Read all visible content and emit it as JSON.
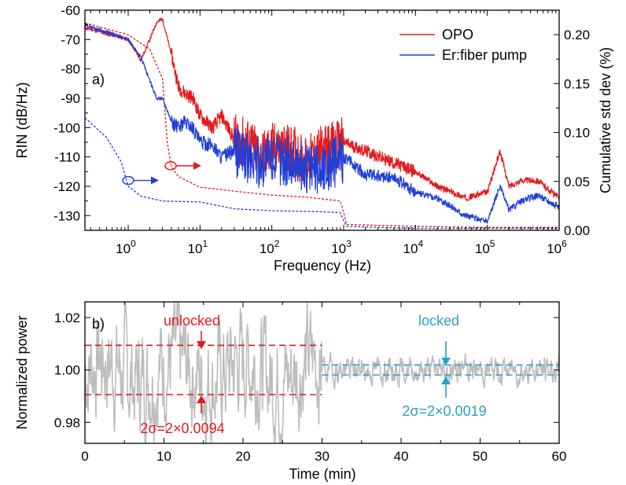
{
  "chart_data": [
    {
      "type": "line",
      "panel_label": "a)",
      "xlabel": "Frequency (Hz)",
      "ylabel": "RIN (dB/Hz)",
      "y2label": "Cumulative std dev (%)",
      "xscale": "log",
      "xlim": [
        0.25,
        1000000
      ],
      "ylim": [
        -135,
        -60
      ],
      "y2lim": [
        0,
        0.225
      ],
      "xticks": [
        1,
        10,
        100,
        1000,
        10000,
        100000,
        1000000
      ],
      "xtick_labels": [
        {
          "base": "10",
          "exp": "0"
        },
        {
          "base": "10",
          "exp": "1"
        },
        {
          "base": "10",
          "exp": "2"
        },
        {
          "base": "10",
          "exp": "3"
        },
        {
          "base": "10",
          "exp": "4"
        },
        {
          "base": "10",
          "exp": "5"
        },
        {
          "base": "10",
          "exp": "6"
        }
      ],
      "yticks": [
        -130,
        -120,
        -110,
        -100,
        -90,
        -80,
        -70,
        -60
      ],
      "ytick_labels": [
        "-130",
        "-120",
        "-110",
        "-100",
        "-90",
        "-80",
        "-70",
        "-60"
      ],
      "y2ticks": [
        0,
        0.05,
        0.1,
        0.15,
        0.2
      ],
      "y2tick_labels": [
        "0.00",
        "0.05",
        "0.10",
        "0.15",
        "0.20"
      ],
      "legend_position": "top-right",
      "series": [
        {
          "name": "OPO",
          "color": "#e31a1c",
          "axis": "left",
          "style": "solid",
          "x": [
            0.25,
            1,
            1.5,
            2,
            2.5,
            3,
            4,
            5,
            6,
            8,
            10,
            15,
            20,
            30,
            50,
            70,
            100,
            200,
            300,
            500,
            1000,
            2000,
            5000,
            10000,
            20000,
            50000,
            100000,
            150000,
            200000,
            300000,
            500000,
            1000000
          ],
          "y": [
            -66,
            -70,
            -77,
            -70,
            -64,
            -63,
            -75,
            -86,
            -88,
            -90,
            -96,
            -100,
            -96,
            -104,
            -106,
            -110,
            -107,
            -108,
            -112,
            -108,
            -105,
            -108,
            -112,
            -115,
            -120,
            -124,
            -122,
            -108,
            -120,
            -118,
            -118,
            -124
          ]
        },
        {
          "name": "Er:fiber pump",
          "color": "#1f3fd6",
          "axis": "left",
          "style": "solid",
          "x": [
            0.25,
            1,
            1.5,
            2,
            2.5,
            3,
            4,
            5,
            6,
            8,
            10,
            15,
            20,
            30,
            50,
            70,
            100,
            200,
            300,
            500,
            1000,
            2000,
            5000,
            10000,
            20000,
            50000,
            100000,
            150000,
            200000,
            300000,
            500000,
            1000000
          ],
          "y": [
            -65,
            -70,
            -76,
            -84,
            -90,
            -90,
            -98,
            -100,
            -98,
            -100,
            -105,
            -106,
            -110,
            -108,
            -111,
            -112,
            -110,
            -112,
            -114,
            -114,
            -110,
            -116,
            -117,
            -122,
            -124,
            -130,
            -132,
            -120,
            -128,
            -125,
            -123,
            -127
          ]
        },
        {
          "name": "OPO cumulative std dev",
          "color": "#e31a1c",
          "axis": "right",
          "style": "dashed",
          "x": [
            0.25,
            1,
            2,
            3,
            3.5,
            4,
            5,
            10,
            30,
            100,
            300,
            900,
            1000,
            1100,
            10000,
            100000,
            1000000
          ],
          "y2": [
            0.212,
            0.2,
            0.185,
            0.155,
            0.09,
            0.065,
            0.055,
            0.044,
            0.04,
            0.036,
            0.034,
            0.03,
            0.018,
            0.006,
            0.004,
            0.003,
            0.003
          ]
        },
        {
          "name": "Er:fiber pump cumulative std dev",
          "color": "#1f3fd6",
          "axis": "right",
          "style": "dashed",
          "x": [
            0.25,
            0.5,
            0.8,
            1,
            1.5,
            3,
            10,
            30,
            100,
            500,
            900,
            1000,
            1100,
            10000,
            100000,
            1000000
          ],
          "y2": [
            0.115,
            0.095,
            0.07,
            0.045,
            0.035,
            0.03,
            0.029,
            0.022,
            0.02,
            0.019,
            0.018,
            0.01,
            0.004,
            0.002,
            0.002,
            0.002
          ]
        }
      ],
      "markers": [
        {
          "color": "#1f3fd6",
          "x": 1,
          "y": -118,
          "points_to": "right"
        },
        {
          "color": "#e31a1c",
          "x": 3.9,
          "y": -113,
          "points_to": "right"
        }
      ]
    },
    {
      "type": "line",
      "panel_label": "b)",
      "xlabel": "Time (min)",
      "ylabel": "Normalized power",
      "xlim": [
        0,
        60
      ],
      "ylim": [
        0.972,
        1.026
      ],
      "xticks": [
        0,
        10,
        20,
        30,
        40,
        50,
        60
      ],
      "xtick_labels": [
        "0",
        "10",
        "20",
        "30",
        "40",
        "50",
        "60"
      ],
      "yticks": [
        0.98,
        1.0,
        1.02
      ],
      "ytick_labels": [
        "0.98",
        "1.00",
        "1.02"
      ],
      "series": [
        {
          "name": "normalized power",
          "color": "#bdbdbd",
          "segments": [
            {
              "x0": 0,
              "x1": 30,
              "mean": 1.0,
              "amp": 0.016,
              "seed": 7
            },
            {
              "x0": 30,
              "x1": 60,
              "mean": 1.0,
              "amp": 0.004,
              "seed": 19
            }
          ]
        }
      ],
      "reference_lines": [
        {
          "y": 1.0094,
          "x0": 0,
          "x1": 30,
          "color": "#e31a1c"
        },
        {
          "y": 0.9906,
          "x0": 0,
          "x1": 30,
          "color": "#e31a1c"
        },
        {
          "y": 1.0019,
          "x0": 30,
          "x1": 60,
          "color": "#2aa0c8"
        },
        {
          "y": 0.9981,
          "x0": 30,
          "x1": 60,
          "color": "#2aa0c8"
        }
      ],
      "annotations": [
        {
          "text": "unlocked",
          "color": "#e31a1c"
        },
        {
          "text": "locked",
          "color": "#2aa0c8"
        },
        {
          "text": "2σ=2×0.0094",
          "color": "#e31a1c"
        },
        {
          "text": "2σ=2×0.0019",
          "color": "#2aa0c8"
        }
      ]
    }
  ]
}
